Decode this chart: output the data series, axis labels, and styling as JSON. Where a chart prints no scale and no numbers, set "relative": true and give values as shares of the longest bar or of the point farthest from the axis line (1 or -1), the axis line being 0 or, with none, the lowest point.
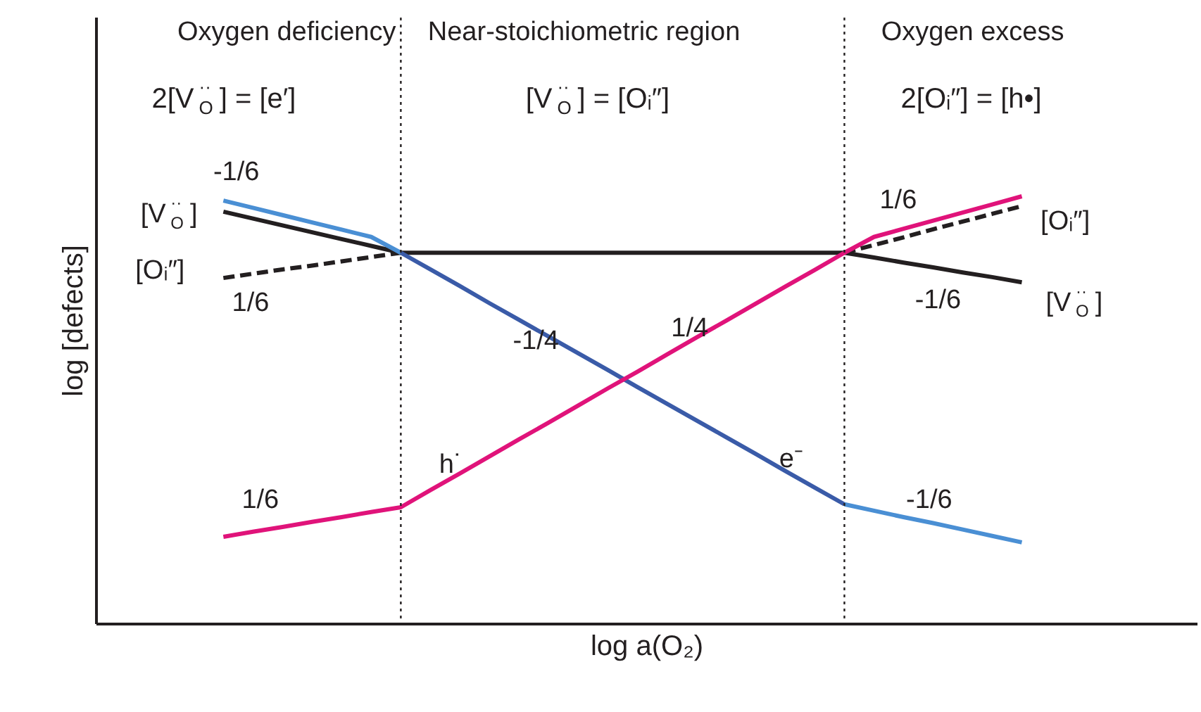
{
  "chart_data": {
    "type": "line",
    "relative": true,
    "xlabel": "log a(O₂)",
    "ylabel": "log [defects]",
    "tick_labels": false,
    "categories": [
      null,
      null,
      null,
      null,
      null,
      null,
      null,
      null,
      null,
      null,
      null,
      null,
      null,
      null,
      null,
      null,
      null,
      null,
      null,
      null,
      null,
      null,
      null,
      null,
      null,
      null,
      null,
      null
    ],
    "series": [
      {
        "color": "#231f20",
        "values": [
          0.964,
          0.948,
          0.932,
          0.916,
          0.9,
          0.884,
          0.868,
          0.868,
          0.868,
          0.868,
          0.868,
          0.868,
          0.868,
          0.868,
          0.868,
          0.868,
          0.868,
          0.868,
          0.868,
          0.868,
          0.868,
          0.868,
          0.857,
          0.845,
          0.834,
          0.822,
          0.811,
          0.799
        ]
      },
      {
        "color": "#231f20",
        "line_style": "dashed",
        "values": [
          0.809,
          0.819,
          0.829,
          0.838,
          0.848,
          0.858,
          0.868,
          null,
          null,
          null,
          null,
          null,
          null,
          null,
          null,
          null,
          null,
          null,
          null,
          null,
          null,
          0.868,
          0.886,
          0.904,
          0.923,
          0.941,
          0.959,
          0.977
        ]
      },
      {
        "color": "#4a8fd4",
        "values": [
          0.99,
          0.973,
          0.956,
          0.939,
          0.922,
          0.905,
          0.868,
          null,
          null,
          null,
          null,
          null,
          null,
          null,
          null,
          null,
          null,
          null,
          null,
          null,
          null,
          null,
          null,
          null,
          null,
          null,
          null,
          null
        ]
      },
      {
        "color": "#3a5ba8",
        "values": [
          null,
          null,
          null,
          null,
          null,
          null,
          0.868,
          0.829,
          0.79,
          0.75,
          0.711,
          0.672,
          0.633,
          0.594,
          0.554,
          0.515,
          0.476,
          0.437,
          0.398,
          0.358,
          0.319,
          0.28,
          null,
          null,
          null,
          null,
          null,
          null
        ]
      },
      {
        "color": "#4a8fd4",
        "values": [
          null,
          null,
          null,
          null,
          null,
          null,
          null,
          null,
          null,
          null,
          null,
          null,
          null,
          null,
          null,
          null,
          null,
          null,
          null,
          null,
          null,
          0.28,
          0.265,
          0.25,
          0.236,
          0.221,
          0.206,
          0.191
        ]
      },
      {
        "color": "#e0137a",
        "values": [
          0.204,
          0.216,
          0.227,
          0.239,
          0.25,
          0.262,
          0.273,
          0.313,
          0.352,
          0.392,
          0.432,
          0.471,
          0.511,
          0.551,
          0.59,
          0.63,
          0.67,
          0.709,
          0.749,
          0.789,
          0.828,
          0.868,
          0.905,
          0.924,
          0.943,
          0.962,
          0.981,
          1.0
        ]
      }
    ],
    "annotations": [
      "Oxygen deficiency",
      "Near-stoichiometric region",
      "Oxygen excess",
      "2[V$_{O}$$^{··}$] = [e′]",
      "[V$_{O}$$^{··}$] = [Oᵢ″]",
      "2[Oᵢ″] = [h•]",
      "-1/6",
      "[V$_{O}$$^{··}$]",
      "[Oᵢ″]",
      "1/6",
      "-1/4",
      "1/4",
      "h˙",
      "e⁻",
      "1/6",
      "-1/6",
      "1/6",
      "[Oᵢ″]",
      "-1/6",
      "[V$_{O}$$^{··}$]"
    ]
  }
}
